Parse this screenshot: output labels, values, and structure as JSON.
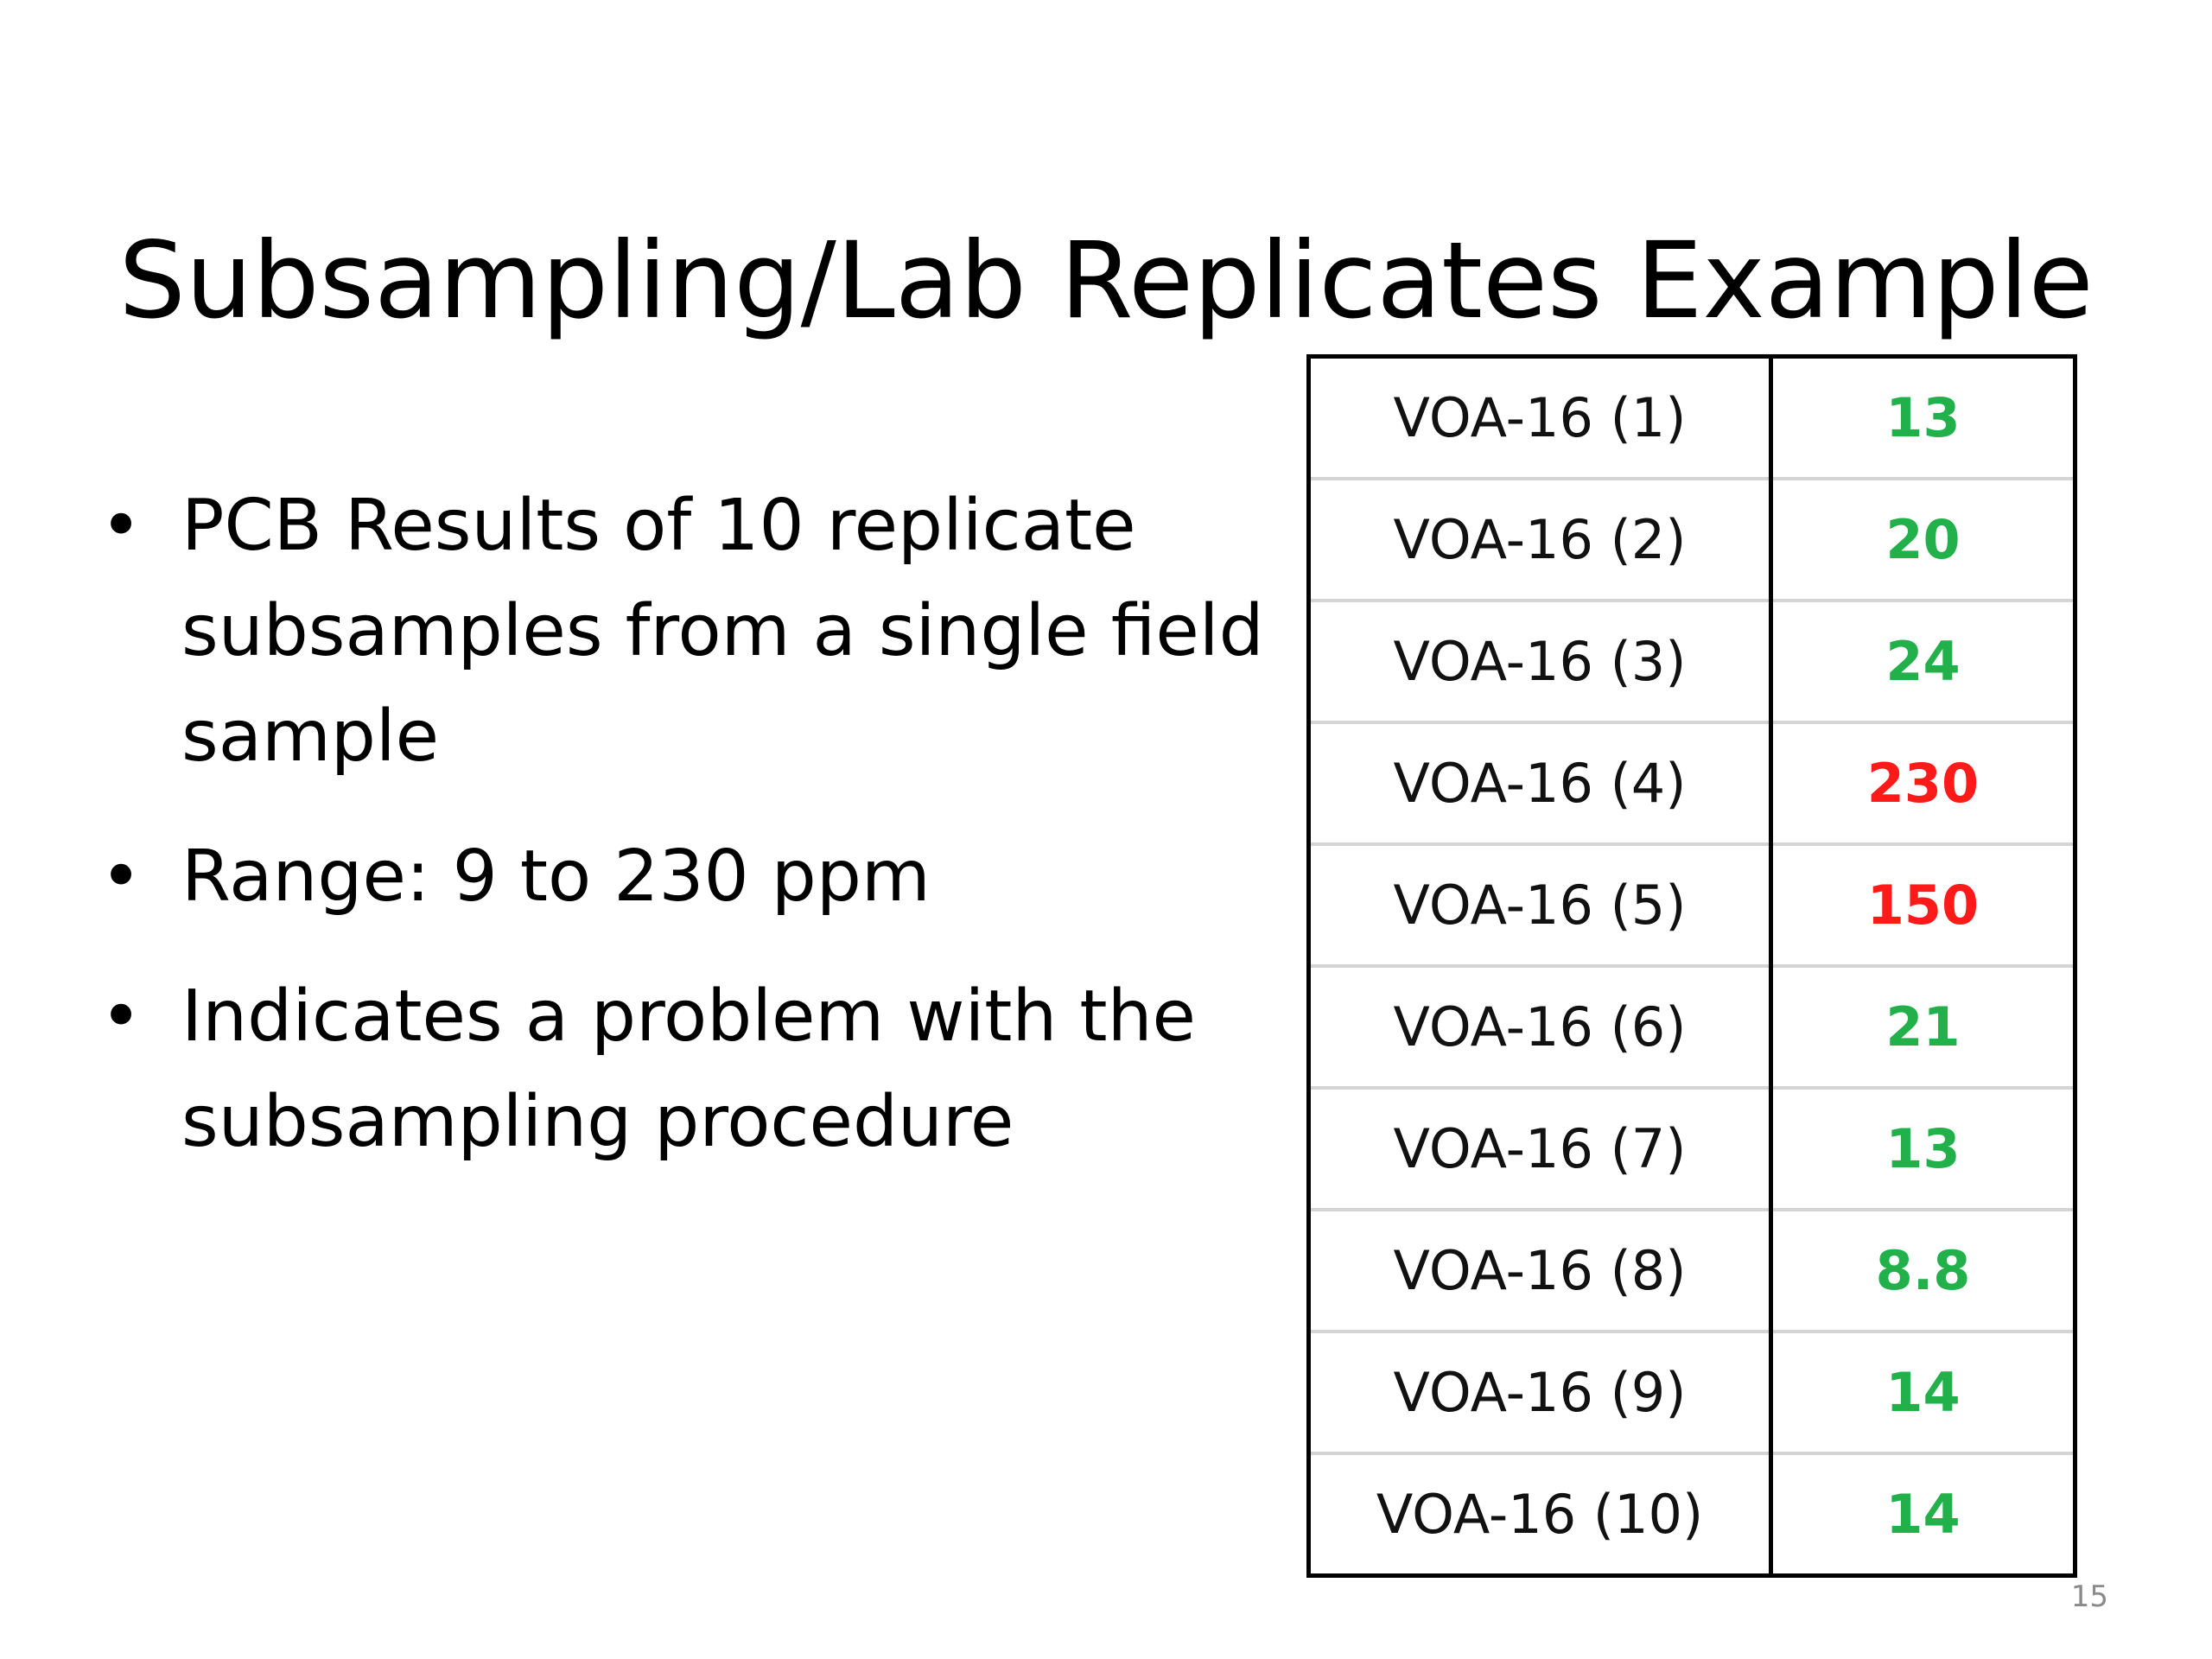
{
  "slide": {
    "title": "Subsampling/Lab Replicates Example",
    "page_number": "15"
  },
  "bullets": [
    {
      "marker": "•",
      "text": "PCB Results of 10 replicate subsamples from a single field sample"
    },
    {
      "marker": "•",
      "text": "Range: 9 to 230 ppm"
    },
    {
      "marker": "•",
      "text": "Indicates a problem with the subsampling procedure"
    }
  ],
  "colors": {
    "normal_value": "#22b04a",
    "outlier_value": "#ff1a1a"
  },
  "table": {
    "rows": [
      {
        "sample": "VOA-16 (1)",
        "value": "13",
        "status": "normal"
      },
      {
        "sample": "VOA-16 (2)",
        "value": "20",
        "status": "normal"
      },
      {
        "sample": "VOA-16 (3)",
        "value": "24",
        "status": "normal"
      },
      {
        "sample": "VOA-16 (4)",
        "value": "230",
        "status": "outlier"
      },
      {
        "sample": "VOA-16 (5)",
        "value": "150",
        "status": "outlier"
      },
      {
        "sample": "VOA-16 (6)",
        "value": "21",
        "status": "normal"
      },
      {
        "sample": "VOA-16 (7)",
        "value": "13",
        "status": "normal"
      },
      {
        "sample": "VOA-16 (8)",
        "value": "8.8",
        "status": "normal"
      },
      {
        "sample": "VOA-16 (9)",
        "value": "14",
        "status": "normal"
      },
      {
        "sample": "VOA-16 (10)",
        "value": "14",
        "status": "normal"
      }
    ]
  }
}
